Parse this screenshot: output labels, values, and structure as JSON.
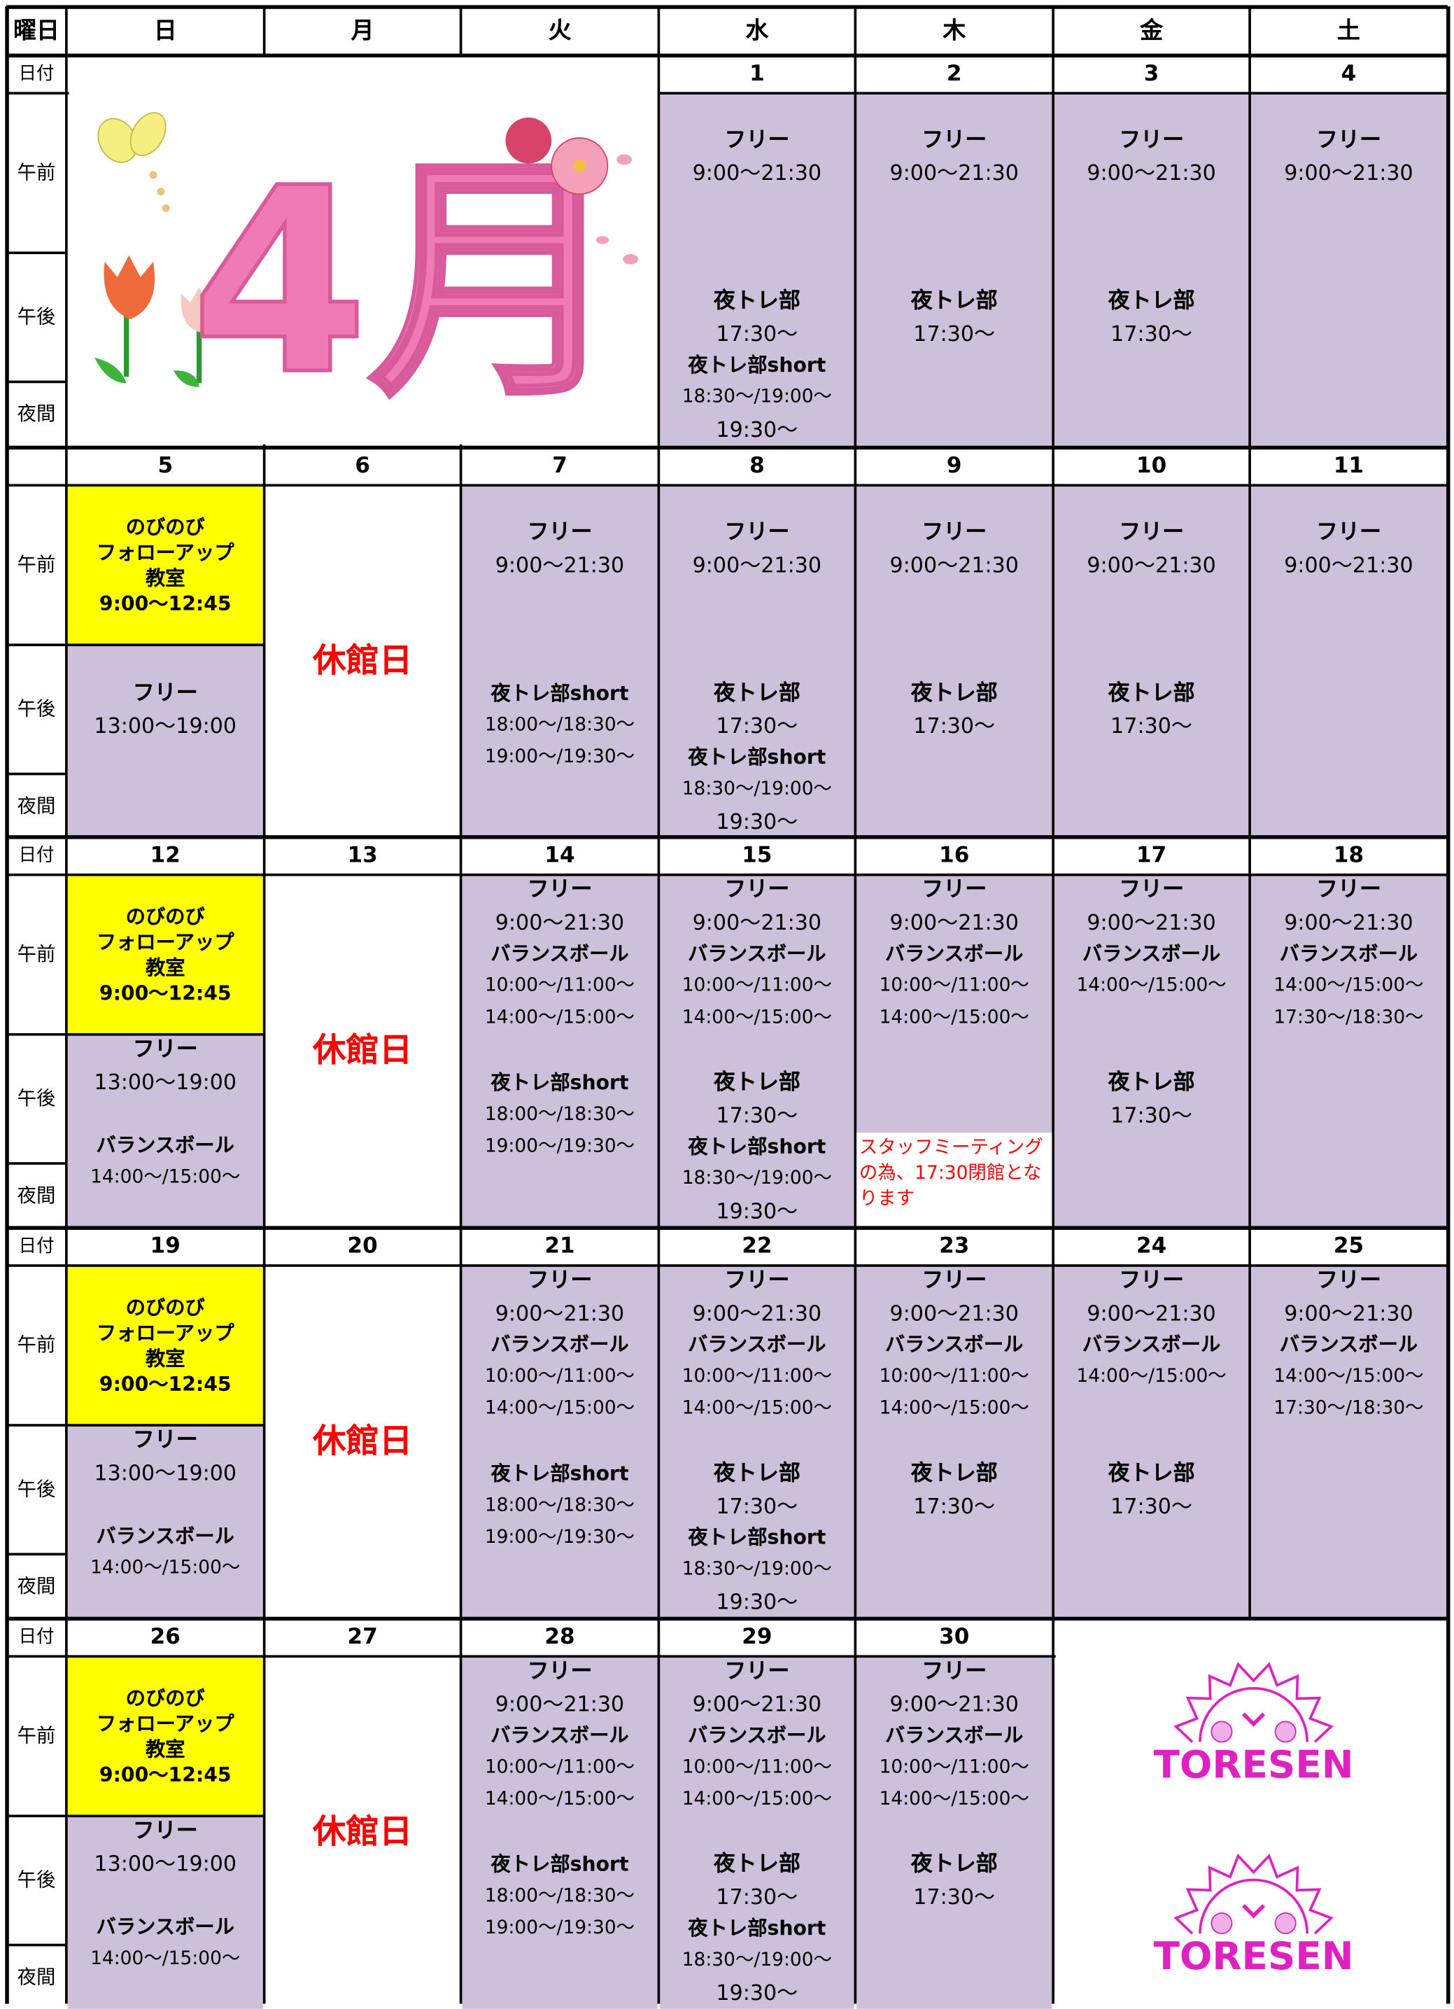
{
  "header": {
    "corner": "曜日",
    "days": [
      "日",
      "月",
      "火",
      "水",
      "木",
      "金",
      "土"
    ]
  },
  "slots": [
    "午前",
    "午後",
    "夜間"
  ],
  "weeks": [
    {
      "date_label": "日付",
      "art": "4月",
      "days": [
        null,
        null,
        null,
        {
          "date": "1",
          "am": [
            "フリー",
            "9:00〜21:30"
          ],
          "pm": [
            "夜トレ部",
            "17:30〜",
            "夜トレ部short",
            "18:30〜/19:00〜",
            "19:30〜"
          ]
        },
        {
          "date": "2",
          "am": [
            "フリー",
            "9:00〜21:30"
          ],
          "pm": [
            "夜トレ部",
            "17:30〜"
          ]
        },
        {
          "date": "3",
          "am": [
            "フリー",
            "9:00〜21:30"
          ],
          "pm": [
            "夜トレ部",
            "17:30〜"
          ]
        },
        {
          "date": "4",
          "am": [
            "フリー",
            "9:00〜21:30"
          ],
          "pm": []
        }
      ]
    },
    {
      "date_label": null,
      "days": [
        {
          "date": "5",
          "class": [
            "のびのび",
            "フォローアップ",
            "教室",
            "9:00〜12:45"
          ],
          "pm": [
            "フリー",
            "13:00〜19:00"
          ]
        },
        {
          "date": "6",
          "closed": "休館日"
        },
        {
          "date": "7",
          "am": [
            "フリー",
            "9:00〜21:30"
          ],
          "pm": [
            "夜トレ部short",
            "18:00〜/18:30〜",
            "19:00〜/19:30〜"
          ]
        },
        {
          "date": "8",
          "am": [
            "フリー",
            "9:00〜21:30"
          ],
          "pm": [
            "夜トレ部",
            "17:30〜",
            "夜トレ部short",
            "18:30〜/19:00〜",
            "19:30〜"
          ]
        },
        {
          "date": "9",
          "am": [
            "フリー",
            "9:00〜21:30"
          ],
          "pm": [
            "夜トレ部",
            "17:30〜"
          ]
        },
        {
          "date": "10",
          "am": [
            "フリー",
            "9:00〜21:30"
          ],
          "pm": [
            "夜トレ部",
            "17:30〜"
          ]
        },
        {
          "date": "11",
          "am": [
            "フリー",
            "9:00〜21:30"
          ],
          "pm": []
        }
      ]
    },
    {
      "date_label": "日付",
      "days": [
        {
          "date": "12",
          "class": [
            "のびのび",
            "フォローアップ",
            "教室",
            "9:00〜12:45"
          ],
          "pm": [
            "フリー",
            "13:00〜19:00"
          ],
          "pm2": [
            "バランスボール",
            "14:00〜/15:00〜"
          ]
        },
        {
          "date": "13",
          "closed": "休館日"
        },
        {
          "date": "14",
          "am": [
            "フリー",
            "9:00〜21:30",
            "バランスボール",
            "10:00〜/11:00〜",
            "14:00〜/15:00〜"
          ],
          "pm": [
            "夜トレ部short",
            "18:00〜/18:30〜",
            "19:00〜/19:30〜"
          ]
        },
        {
          "date": "15",
          "am": [
            "フリー",
            "9:00〜21:30",
            "バランスボール",
            "10:00〜/11:00〜",
            "14:00〜/15:00〜"
          ],
          "pm": [
            "夜トレ部",
            "17:30〜",
            "夜トレ部short",
            "18:30〜/19:00〜",
            "19:30〜"
          ]
        },
        {
          "date": "16",
          "am": [
            "フリー",
            "9:00〜21:30",
            "バランスボール",
            "10:00〜/11:00〜",
            "14:00〜/15:00〜"
          ],
          "pm": [],
          "note": "スタッフミーティングの為、17:30閉館となります"
        },
        {
          "date": "17",
          "am": [
            "フリー",
            "9:00〜21:30",
            "バランスボール",
            "14:00〜/15:00〜"
          ],
          "pm": [
            "夜トレ部",
            "17:30〜"
          ]
        },
        {
          "date": "18",
          "am": [
            "フリー",
            "9:00〜21:30",
            "バランスボール",
            "14:00〜/15:00〜",
            "17:30〜/18:30〜"
          ],
          "pm": []
        }
      ]
    },
    {
      "date_label": "日付",
      "days": [
        {
          "date": "19",
          "class": [
            "のびのび",
            "フォローアップ",
            "教室",
            "9:00〜12:45"
          ],
          "pm": [
            "フリー",
            "13:00〜19:00"
          ],
          "pm2": [
            "バランスボール",
            "14:00〜/15:00〜"
          ]
        },
        {
          "date": "20",
          "closed": "休館日"
        },
        {
          "date": "21",
          "am": [
            "フリー",
            "9:00〜21:30",
            "バランスボール",
            "10:00〜/11:00〜",
            "14:00〜/15:00〜"
          ],
          "pm": [
            "夜トレ部short",
            "18:00〜/18:30〜",
            "19:00〜/19:30〜"
          ]
        },
        {
          "date": "22",
          "am": [
            "フリー",
            "9:00〜21:30",
            "バランスボール",
            "10:00〜/11:00〜",
            "14:00〜/15:00〜"
          ],
          "pm": [
            "夜トレ部",
            "17:30〜",
            "夜トレ部short",
            "18:30〜/19:00〜",
            "19:30〜"
          ]
        },
        {
          "date": "23",
          "am": [
            "フリー",
            "9:00〜21:30",
            "バランスボール",
            "10:00〜/11:00〜",
            "14:00〜/15:00〜"
          ],
          "pm": [
            "夜トレ部",
            "17:30〜"
          ]
        },
        {
          "date": "24",
          "am": [
            "フリー",
            "9:00〜21:30",
            "バランスボール",
            "14:00〜/15:00〜"
          ],
          "pm": [
            "夜トレ部",
            "17:30〜"
          ]
        },
        {
          "date": "25",
          "am": [
            "フリー",
            "9:00〜21:30",
            "バランスボール",
            "14:00〜/15:00〜",
            "17:30〜/18:30〜"
          ],
          "pm": []
        }
      ]
    },
    {
      "date_label": "日付",
      "logo": [
        "TORESEN",
        "TORESEN"
      ],
      "days": [
        {
          "date": "26",
          "class": [
            "のびのび",
            "フォローアップ",
            "教室",
            "9:00〜12:45"
          ],
          "pm": [
            "フリー",
            "13:00〜19:00"
          ],
          "pm2": [
            "バランスボール",
            "14:00〜/15:00〜"
          ]
        },
        {
          "date": "27",
          "closed": "休館日"
        },
        {
          "date": "28",
          "am": [
            "フリー",
            "9:00〜21:30",
            "バランスボール",
            "10:00〜/11:00〜",
            "14:00〜/15:00〜"
          ],
          "pm": [
            "夜トレ部short",
            "18:00〜/18:30〜",
            "19:00〜/19:30〜"
          ]
        },
        {
          "date": "29",
          "am": [
            "フリー",
            "9:00〜21:30",
            "バランスボール",
            "10:00〜/11:00〜",
            "14:00〜/15:00〜"
          ],
          "pm": [
            "夜トレ部",
            "17:30〜",
            "夜トレ部short",
            "18:30〜/19:00〜",
            "19:30〜"
          ]
        },
        {
          "date": "30",
          "am": [
            "フリー",
            "9:00〜21:30",
            "バランスボール",
            "10:00〜/11:00〜",
            "14:00〜/15:00〜"
          ],
          "pm": [
            "夜トレ部",
            "17:30〜"
          ]
        },
        null,
        null
      ]
    }
  ]
}
